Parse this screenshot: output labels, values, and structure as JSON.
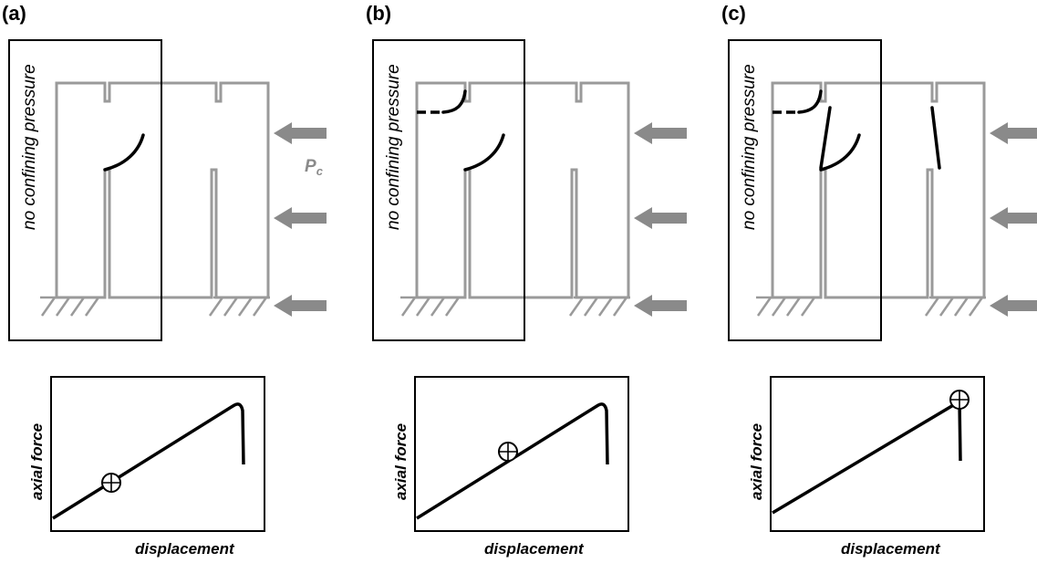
{
  "panels": [
    {
      "label": "(a)",
      "box_label": "no confining pressure",
      "pressure_label": "P",
      "pressure_subscript": "c",
      "xlabel": "displacement",
      "ylabel": "axial force"
    },
    {
      "label": "(b)",
      "box_label": "no confining pressure",
      "xlabel": "displacement",
      "ylabel": "axial force"
    },
    {
      "label": "(c)",
      "box_label": "no confining pressure",
      "xlabel": "displacement",
      "ylabel": "axial force"
    }
  ],
  "colors": {
    "specimen": "#9a9a9a",
    "crack": "#000000",
    "arrow": "#8a8a8a"
  }
}
